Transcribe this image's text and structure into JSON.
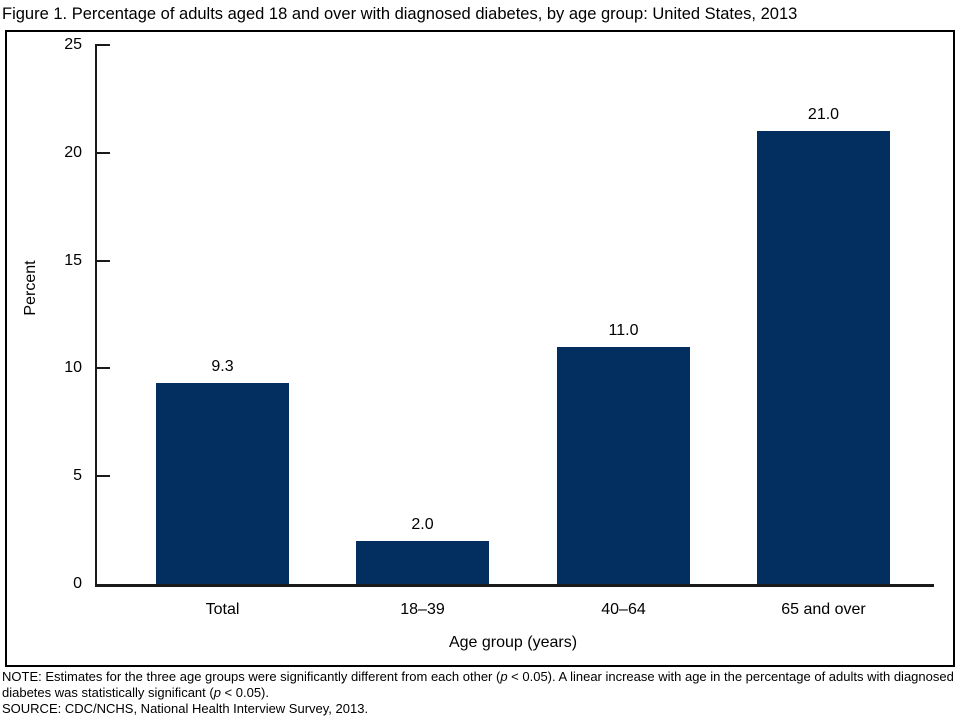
{
  "title": "Figure 1. Percentage of adults aged 18 and over with diagnosed diabetes, by age group: United States, 2013",
  "chart_data": {
    "type": "bar",
    "categories": [
      "Total",
      "18–39",
      "40–64",
      "65 and over"
    ],
    "values": [
      9.3,
      2.0,
      11.0,
      21.0
    ],
    "value_labels": [
      "9.3",
      "2.0",
      "11.0",
      "21.0"
    ],
    "xlabel": "Age group (years)",
    "ylabel": "Percent",
    "ylim": [
      0,
      25
    ],
    "yticks": [
      0,
      5,
      10,
      15,
      20,
      25
    ],
    "grid": false,
    "legend": false,
    "bar_color": "#032e60"
  },
  "notes": {
    "note_prefix": "NOTE: Estimates for the three age groups were significantly different from each other (",
    "p_italic": "p",
    "note_mid": " < 0.05). A linear increase with age in the percentage of adults with diagnosed diabetes was statistically significant (",
    "note_suffix": " < 0.05).",
    "source": "SOURCE: CDC/NCHS, National Health Interview Survey, 2013."
  }
}
